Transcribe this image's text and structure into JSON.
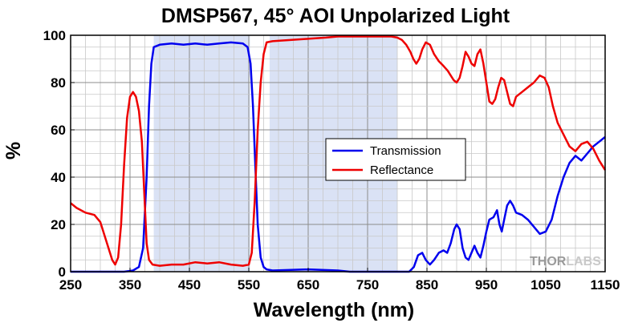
{
  "chart_data": {
    "type": "line",
    "title": "DMSP567, 45° AOI Unpolarized Light",
    "xlabel": "Wavelength (nm)",
    "ylabel": "%",
    "xlim": [
      250,
      1150
    ],
    "ylim": [
      0,
      100
    ],
    "x_ticks": [
      250,
      350,
      450,
      550,
      650,
      750,
      850,
      950,
      1050,
      1150
    ],
    "y_ticks": [
      0,
      20,
      40,
      60,
      80,
      100
    ],
    "grid": true,
    "minor_grid": true,
    "legend_position": "center-right",
    "shaded_regions": [
      {
        "x_start": 390,
        "x_end": 552
      },
      {
        "x_start": 585,
        "x_end": 800
      }
    ],
    "series": [
      {
        "name": "Transmission",
        "color": "#0000ee",
        "points": [
          [
            250,
            0
          ],
          [
            300,
            0
          ],
          [
            340,
            0
          ],
          [
            355,
            0.5
          ],
          [
            365,
            2
          ],
          [
            372,
            10
          ],
          [
            378,
            40
          ],
          [
            382,
            70
          ],
          [
            386,
            88
          ],
          [
            390,
            95
          ],
          [
            400,
            96
          ],
          [
            420,
            96.5
          ],
          [
            440,
            96
          ],
          [
            460,
            96.5
          ],
          [
            480,
            96
          ],
          [
            500,
            96.5
          ],
          [
            520,
            97
          ],
          [
            540,
            96.5
          ],
          [
            548,
            95
          ],
          [
            553,
            88
          ],
          [
            557,
            70
          ],
          [
            561,
            45
          ],
          [
            565,
            20
          ],
          [
            570,
            6
          ],
          [
            575,
            2
          ],
          [
            580,
            1
          ],
          [
            590,
            0.5
          ],
          [
            650,
            1
          ],
          [
            700,
            0.5
          ],
          [
            720,
            0
          ],
          [
            820,
            0
          ],
          [
            828,
            2
          ],
          [
            835,
            7
          ],
          [
            842,
            8
          ],
          [
            848,
            5
          ],
          [
            855,
            3
          ],
          [
            862,
            5
          ],
          [
            870,
            8
          ],
          [
            878,
            9
          ],
          [
            884,
            8
          ],
          [
            890,
            12
          ],
          [
            896,
            18
          ],
          [
            900,
            20
          ],
          [
            905,
            18
          ],
          [
            910,
            10
          ],
          [
            915,
            6
          ],
          [
            920,
            5
          ],
          [
            925,
            8
          ],
          [
            930,
            11
          ],
          [
            935,
            8
          ],
          [
            940,
            6
          ],
          [
            945,
            11
          ],
          [
            950,
            17
          ],
          [
            955,
            22
          ],
          [
            962,
            23
          ],
          [
            968,
            26
          ],
          [
            972,
            20
          ],
          [
            976,
            17
          ],
          [
            980,
            22
          ],
          [
            985,
            28
          ],
          [
            990,
            30
          ],
          [
            995,
            28
          ],
          [
            1000,
            25
          ],
          [
            1010,
            24
          ],
          [
            1020,
            22
          ],
          [
            1030,
            19
          ],
          [
            1040,
            16
          ],
          [
            1050,
            17
          ],
          [
            1060,
            22
          ],
          [
            1070,
            32
          ],
          [
            1080,
            40
          ],
          [
            1090,
            46
          ],
          [
            1100,
            49
          ],
          [
            1110,
            47
          ],
          [
            1120,
            50
          ],
          [
            1130,
            53
          ],
          [
            1140,
            55
          ],
          [
            1150,
            57
          ]
        ]
      },
      {
        "name": "Reflectance",
        "color": "#ee0000",
        "points": [
          [
            250,
            29
          ],
          [
            260,
            27
          ],
          [
            275,
            25
          ],
          [
            290,
            24
          ],
          [
            300,
            21
          ],
          [
            310,
            13
          ],
          [
            320,
            5
          ],
          [
            325,
            3
          ],
          [
            330,
            6
          ],
          [
            335,
            20
          ],
          [
            340,
            45
          ],
          [
            345,
            65
          ],
          [
            350,
            74
          ],
          [
            355,
            76
          ],
          [
            360,
            74
          ],
          [
            365,
            68
          ],
          [
            370,
            55
          ],
          [
            375,
            28
          ],
          [
            378,
            12
          ],
          [
            382,
            5
          ],
          [
            388,
            3
          ],
          [
            400,
            2.5
          ],
          [
            420,
            3
          ],
          [
            440,
            3
          ],
          [
            460,
            4
          ],
          [
            480,
            3.5
          ],
          [
            500,
            4
          ],
          [
            520,
            3
          ],
          [
            540,
            2.5
          ],
          [
            550,
            3
          ],
          [
            555,
            8
          ],
          [
            560,
            30
          ],
          [
            565,
            60
          ],
          [
            570,
            80
          ],
          [
            575,
            92
          ],
          [
            580,
            97
          ],
          [
            590,
            97.5
          ],
          [
            620,
            98
          ],
          [
            650,
            98.5
          ],
          [
            680,
            99
          ],
          [
            700,
            99.5
          ],
          [
            750,
            99.5
          ],
          [
            790,
            99.5
          ],
          [
            800,
            99
          ],
          [
            808,
            98
          ],
          [
            815,
            96
          ],
          [
            822,
            93
          ],
          [
            827,
            90
          ],
          [
            832,
            88
          ],
          [
            837,
            90
          ],
          [
            842,
            94
          ],
          [
            848,
            97
          ],
          [
            855,
            96
          ],
          [
            862,
            92
          ],
          [
            870,
            89
          ],
          [
            878,
            87
          ],
          [
            885,
            85
          ],
          [
            890,
            83
          ],
          [
            895,
            81
          ],
          [
            900,
            80
          ],
          [
            905,
            82
          ],
          [
            910,
            87
          ],
          [
            915,
            93
          ],
          [
            920,
            91
          ],
          [
            925,
            88
          ],
          [
            930,
            87
          ],
          [
            935,
            92
          ],
          [
            940,
            94
          ],
          [
            945,
            88
          ],
          [
            950,
            80
          ],
          [
            955,
            72
          ],
          [
            960,
            71
          ],
          [
            965,
            73
          ],
          [
            970,
            78
          ],
          [
            975,
            82
          ],
          [
            980,
            81
          ],
          [
            985,
            76
          ],
          [
            990,
            71
          ],
          [
            995,
            70
          ],
          [
            1000,
            74
          ],
          [
            1010,
            76
          ],
          [
            1020,
            78
          ],
          [
            1030,
            80
          ],
          [
            1040,
            83
          ],
          [
            1048,
            82
          ],
          [
            1055,
            78
          ],
          [
            1062,
            70
          ],
          [
            1070,
            63
          ],
          [
            1080,
            58
          ],
          [
            1090,
            53
          ],
          [
            1100,
            51
          ],
          [
            1110,
            54
          ],
          [
            1120,
            55
          ],
          [
            1130,
            52
          ],
          [
            1140,
            47
          ],
          [
            1150,
            43
          ]
        ]
      }
    ]
  },
  "logo": {
    "text_dark": "THOR",
    "text_light": "LABS"
  }
}
